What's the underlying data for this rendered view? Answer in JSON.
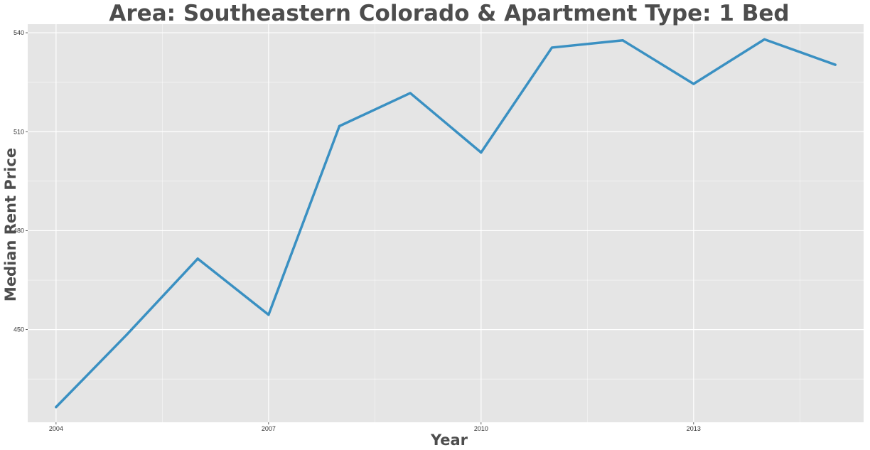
{
  "chart_data": {
    "type": "line",
    "title": "Area: Southeastern Colorado & Apartment Type: 1 Bed",
    "xlabel": "Year",
    "ylabel": "Median Rent Price",
    "x": [
      2004,
      2005,
      2006,
      2007,
      2008,
      2009,
      2010,
      2011,
      2012,
      2013,
      2014,
      2015
    ],
    "series": [
      {
        "values": [
          426.5,
          448.5,
          471.5,
          454.5,
          511.7,
          521.7,
          503.7,
          535.5,
          537.7,
          524.5,
          538.0,
          530.3
        ]
      }
    ],
    "xlim": [
      2003.6,
      2015.4
    ],
    "ylim": [
      421.9,
      542.6
    ],
    "x_ticks": [
      2004,
      2007,
      2010,
      2013
    ],
    "x_tick_labels": [
      "2004",
      "2007",
      "2010",
      "2013"
    ],
    "y_ticks": [
      450,
      480,
      510,
      540
    ],
    "y_tick_labels": [
      "450",
      "480",
      "510",
      "540"
    ],
    "grid": true,
    "legend": "none",
    "colors": {
      "panel_background": "#e5e5e5",
      "grid_major": "#ffffff",
      "line": "#3a90c2",
      "text": "#4d4d4d"
    }
  }
}
